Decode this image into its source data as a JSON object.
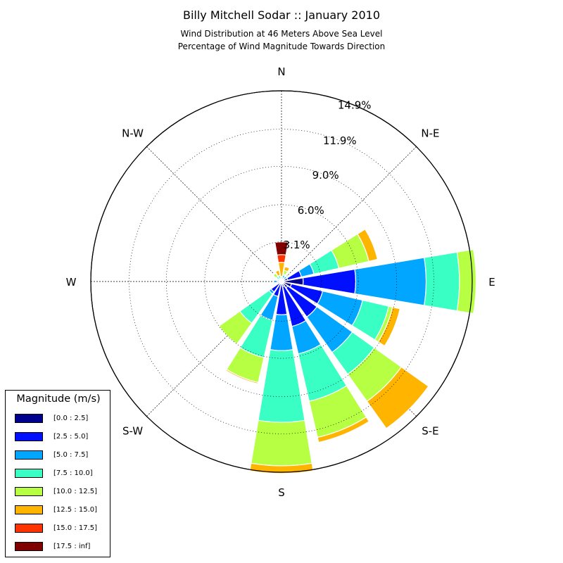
{
  "chart_data": {
    "type": "windrose",
    "title": "Billy Mitchell Sodar :: January 2010",
    "subtitle_lines": [
      "Wind Distribution at 46 Meters Above Sea Level",
      "Percentage of Wind Magnitude Towards Direction"
    ],
    "direction_labels": [
      {
        "angle": 0,
        "text": "N"
      },
      {
        "angle": 45,
        "text": "N-E"
      },
      {
        "angle": 90,
        "text": "E"
      },
      {
        "angle": 135,
        "text": "S-E"
      },
      {
        "angle": 180,
        "text": "S"
      },
      {
        "angle": 225,
        "text": "S-W"
      },
      {
        "angle": 270,
        "text": "W"
      },
      {
        "angle": 315,
        "text": "N-W"
      }
    ],
    "radial_ticks": [
      {
        "value": 3.1,
        "label": "3.1%"
      },
      {
        "value": 6.0,
        "label": "6.0%"
      },
      {
        "value": 9.0,
        "label": "9.0%"
      },
      {
        "value": 11.9,
        "label": "11.9%"
      },
      {
        "value": 14.9,
        "label": "14.9%"
      }
    ],
    "r_max": 14.9,
    "radial_label_angle_deg": 22.5,
    "legend_title": "Magnitude (m/s)",
    "legend_placement": "bottom-left",
    "bins": [
      {
        "label": "[0.0 : 2.5]",
        "color": "#00008f"
      },
      {
        "label": "[2.5 : 5.0]",
        "color": "#0010ff"
      },
      {
        "label": "[5.0 : 7.5]",
        "color": "#00a6ff"
      },
      {
        "label": "[7.5 : 10.0]",
        "color": "#3affc5"
      },
      {
        "label": "[10.0 : 12.5]",
        "color": "#b6ff42"
      },
      {
        "label": "[12.5 : 15.0]",
        "color": "#ffb400"
      },
      {
        "label": "[15.0 : 17.5]",
        "color": "#ff3300"
      },
      {
        "label": "[17.5 : inf]",
        "color": "#800000"
      }
    ],
    "sectors": [
      {
        "direction": 0,
        "cumulative": [
          0.2,
          0.2,
          0.2,
          0.2,
          0.4,
          1.5,
          2.1,
          3.1
        ]
      },
      {
        "direction": 22.5,
        "cumulative": [
          0.2,
          0.3,
          0.5,
          0.6,
          0.9,
          1.2,
          1.2,
          1.2
        ]
      },
      {
        "direction": 45,
        "cumulative": [
          0.2,
          0.3,
          0.5,
          0.6,
          0.6,
          0.7,
          0.7,
          0.7
        ]
      },
      {
        "direction": 67.5,
        "cumulative": [
          0.5,
          1.6,
          2.6,
          4.6,
          7.0,
          7.7,
          7.7,
          7.7
        ]
      },
      {
        "direction": 90,
        "cumulative": [
          1.7,
          5.8,
          11.3,
          13.9,
          15.2,
          15.2,
          15.2,
          15.2
        ]
      },
      {
        "direction": 112.5,
        "cumulative": [
          0.8,
          3.3,
          6.5,
          8.6,
          8.9,
          9.5,
          9.5,
          9.5
        ]
      },
      {
        "direction": 135,
        "cumulative": [
          0.6,
          3.4,
          6.8,
          8.9,
          11.5,
          14.1,
          14.1,
          14.1
        ]
      },
      {
        "direction": 157.5,
        "cumulative": [
          0.4,
          3.6,
          5.8,
          9.6,
          12.5,
          12.9,
          12.9,
          12.9
        ]
      },
      {
        "direction": 180,
        "cumulative": [
          0.2,
          2.6,
          5.4,
          11.0,
          14.4,
          15.0,
          15.0,
          15.0
        ]
      },
      {
        "direction": 202.5,
        "cumulative": [
          0.2,
          1.2,
          3.1,
          6.1,
          8.1,
          8.2,
          8.2,
          8.2
        ]
      },
      {
        "direction": 225,
        "cumulative": [
          0.2,
          1.0,
          1.2,
          4.0,
          6.0,
          6.0,
          6.0,
          6.0
        ]
      },
      {
        "direction": 247.5,
        "cumulative": [
          0.2,
          0.3,
          0.3,
          0.3,
          0.3,
          0.3,
          0.3,
          0.3
        ]
      },
      {
        "direction": 270,
        "cumulative": [
          0.2,
          0.3,
          0.6,
          0.6,
          0.6,
          0.6,
          0.6,
          0.6
        ]
      },
      {
        "direction": 292.5,
        "cumulative": [
          0.1,
          0.2,
          0.3,
          0.3,
          0.3,
          0.3,
          0.3,
          0.3
        ]
      },
      {
        "direction": 315,
        "cumulative": [
          0.2,
          0.2,
          0.3,
          0.5,
          0.8,
          0.8,
          0.8,
          0.8
        ]
      },
      {
        "direction": 337.5,
        "cumulative": [
          0.2,
          0.2,
          0.2,
          0.5,
          0.5,
          0.9,
          0.9,
          0.9
        ]
      }
    ]
  }
}
